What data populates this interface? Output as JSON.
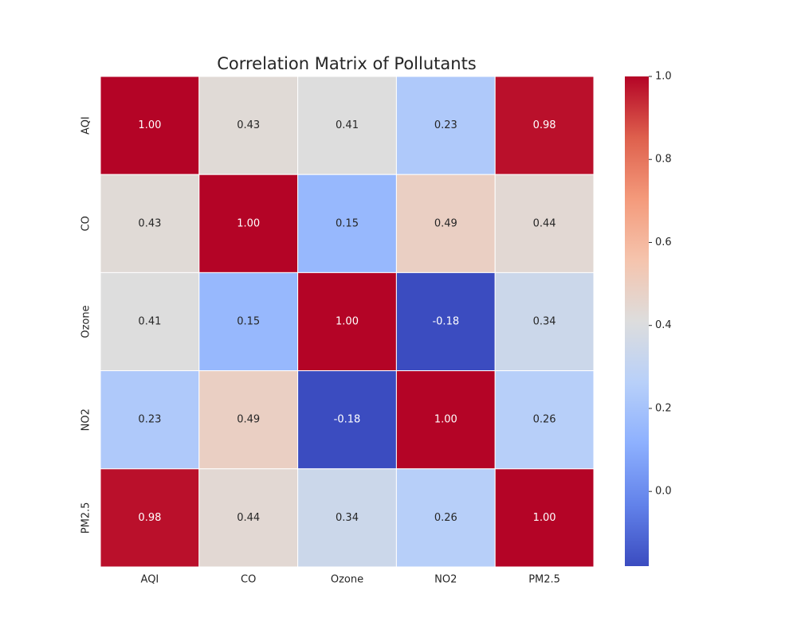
{
  "chart_data": {
    "type": "heatmap",
    "title": "Correlation Matrix of Pollutants",
    "x_categories": [
      "AQI",
      "CO",
      "Ozone",
      "NO2",
      "PM2.5"
    ],
    "y_categories": [
      "AQI",
      "CO",
      "Ozone",
      "NO2",
      "PM2.5"
    ],
    "values": [
      [
        1,
        0.43,
        0.41,
        0.23,
        0.98
      ],
      [
        0.43,
        1,
        0.15,
        0.49,
        0.44
      ],
      [
        0.41,
        0.15,
        1,
        -0.18,
        0.34
      ],
      [
        0.23,
        0.49,
        -0.18,
        1,
        0.26
      ],
      [
        0.98,
        0.44,
        0.34,
        0.26,
        1
      ]
    ],
    "value_labels": [
      [
        "1.00",
        "0.43",
        "0.41",
        "0.23",
        "0.98"
      ],
      [
        "0.43",
        "1.00",
        "0.15",
        "0.49",
        "0.44"
      ],
      [
        "0.41",
        "0.15",
        "1.00",
        "-0.18",
        "0.34"
      ],
      [
        "0.23",
        "0.49",
        "-0.18",
        "1.00",
        "0.26"
      ],
      [
        "0.98",
        "0.44",
        "0.34",
        "0.26",
        "1.00"
      ]
    ],
    "colormap": "coolwarm",
    "clim": [
      -0.18,
      1
    ],
    "cticks": [
      {
        "value": 0,
        "label": "0.0"
      },
      {
        "value": 0.2,
        "label": "0.2"
      },
      {
        "value": 0.4,
        "label": "0.4"
      },
      {
        "value": 0.6,
        "label": "0.6"
      },
      {
        "value": 0.8,
        "label": "0.8"
      },
      {
        "value": 1,
        "label": "1.0"
      }
    ]
  }
}
